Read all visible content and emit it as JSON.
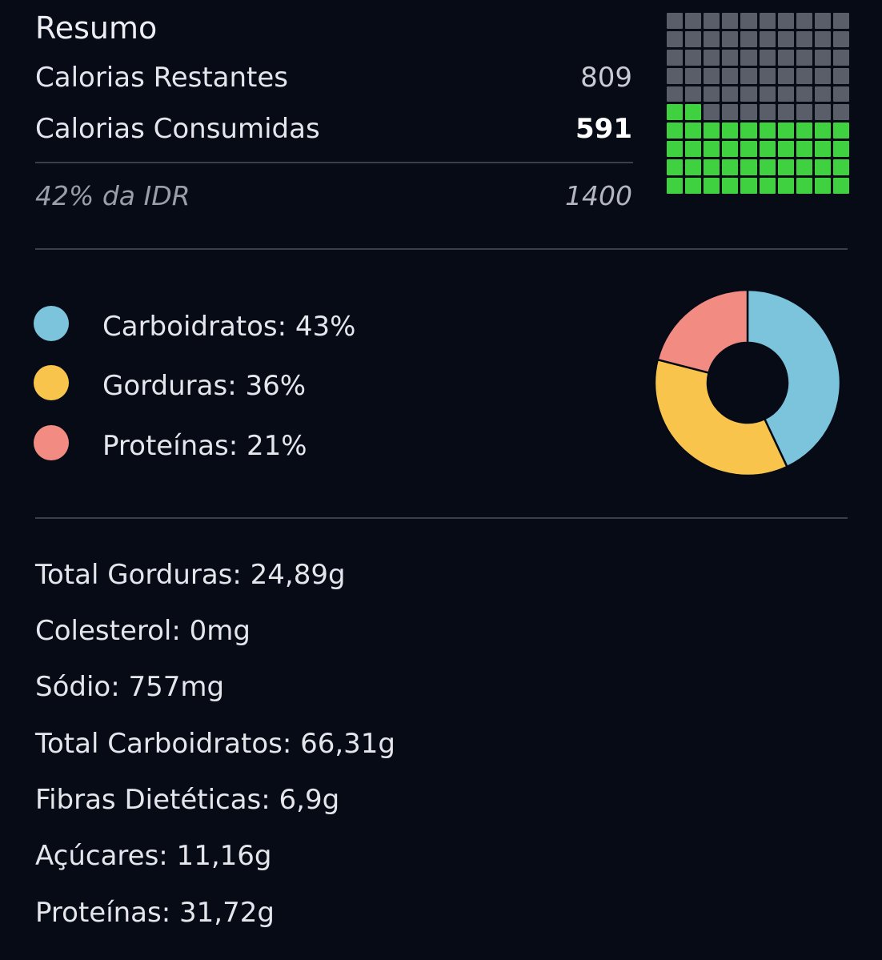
{
  "summary": {
    "title": "Resumo",
    "remaining_label": "Calorias Restantes",
    "remaining_value": "809",
    "consumed_label": "Calorias Consumidas",
    "consumed_value": "591",
    "idr_label": "42% da IDR",
    "idr_value": "1400",
    "waffle": {
      "total_cells": 100,
      "filled_cells": 42,
      "filled_color": "#3fd13f",
      "empty_color": "#5a5e68"
    }
  },
  "macros": {
    "items": [
      {
        "label": "Carboidratos: 43%",
        "color": "#7cc3dc"
      },
      {
        "label": "Gorduras: 36%",
        "color": "#f8c44c"
      },
      {
        "label": "Proteínas: 21%",
        "color": "#f28b82"
      }
    ]
  },
  "chart_data": {
    "type": "pie",
    "categories": [
      "Carboidratos",
      "Gorduras",
      "Proteínas"
    ],
    "values": [
      43,
      36,
      21
    ],
    "colors": [
      "#7cc3dc",
      "#f8c44c",
      "#f28b82"
    ],
    "donut": true
  },
  "nutrients": [
    "Total Gorduras: 24,89g",
    "Colesterol: 0mg",
    "Sódio: 757mg",
    "Total Carboidratos: 66,31g",
    "Fibras Dietéticas: 6,9g",
    "Açúcares: 11,16g",
    "Proteínas: 31,72g"
  ]
}
